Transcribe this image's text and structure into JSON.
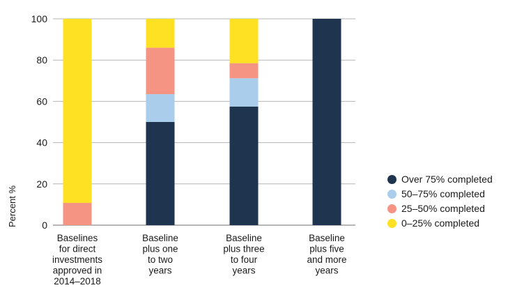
{
  "chart_data": {
    "type": "bar",
    "stacked": true,
    "categories": [
      [
        "Baselines",
        "for direct",
        "investments",
        "approved in",
        "2014–2018"
      ],
      [
        "Baseline",
        "plus one",
        "to two",
        "years"
      ],
      [
        "Baseline",
        "plus three",
        "to four",
        "years"
      ],
      [
        "Baseline",
        "plus five",
        "and more",
        "years"
      ]
    ],
    "series": [
      {
        "name": "Over 75% completed",
        "color": "#1f344f",
        "values": [
          0,
          50,
          57.5,
          100
        ]
      },
      {
        "name": "50–75% completed",
        "color": "#a9cdea",
        "values": [
          0,
          13.5,
          13.7,
          0
        ]
      },
      {
        "name": "25–50% completed",
        "color": "#f69484",
        "values": [
          10.8,
          22.5,
          7.3,
          0
        ]
      },
      {
        "name": "0–25% completed",
        "color": "#fde122",
        "values": [
          89.2,
          14,
          21.5,
          0
        ]
      }
    ],
    "ylabel": "Percent %",
    "xlabel": "",
    "ylim": [
      0,
      100
    ],
    "yticks": [
      0,
      20,
      40,
      60,
      80,
      100
    ],
    "grid": "horizontal",
    "legend_position": "right"
  }
}
